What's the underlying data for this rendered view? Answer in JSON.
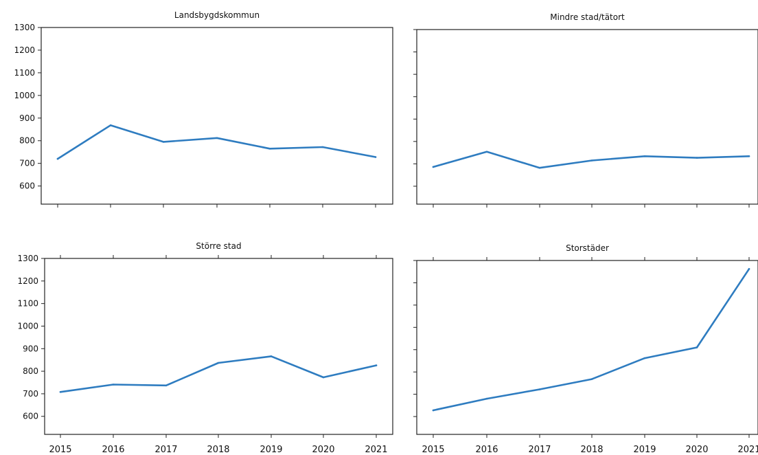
{
  "chart_data": [
    {
      "type": "line",
      "title": "Landsbygdskommun",
      "x": [
        "2015",
        "2016",
        "2017",
        "2018",
        "2019",
        "2020",
        "2021"
      ],
      "y": [
        720,
        868,
        795,
        812,
        765,
        772,
        728
      ],
      "ylim": [
        520,
        1300
      ],
      "yticks": [
        600,
        700,
        800,
        900,
        1000,
        1100,
        1200,
        1300
      ],
      "show_x_ticklabels": false,
      "show_y_ticklabels": true,
      "grid": false,
      "line_color": "#2e7cc0"
    },
    {
      "type": "line",
      "title": "Mindre stad/tätort",
      "x": [
        "2015",
        "2016",
        "2017",
        "2018",
        "2019",
        "2020",
        "2021"
      ],
      "y": [
        686,
        754,
        682,
        715,
        734,
        727,
        734
      ],
      "ylim": [
        520,
        1300
      ],
      "yticks": [
        600,
        700,
        800,
        900,
        1000,
        1100,
        1200,
        1300
      ],
      "show_x_ticklabels": false,
      "show_y_ticklabels": false,
      "grid": false,
      "line_color": "#2e7cc0"
    },
    {
      "type": "line",
      "title": "Större stad",
      "x": [
        "2015",
        "2016",
        "2017",
        "2018",
        "2019",
        "2020",
        "2021"
      ],
      "y": [
        708,
        741,
        737,
        837,
        866,
        773,
        826
      ],
      "ylim": [
        520,
        1300
      ],
      "yticks": [
        600,
        700,
        800,
        900,
        1000,
        1100,
        1200,
        1300
      ],
      "show_x_ticklabels": true,
      "show_y_ticklabels": true,
      "grid": false,
      "line_color": "#2e7cc0"
    },
    {
      "type": "line",
      "title": "Storstäder",
      "x": [
        "2015",
        "2016",
        "2017",
        "2018",
        "2019",
        "2020",
        "2021"
      ],
      "y": [
        628,
        680,
        722,
        768,
        862,
        910,
        1262
      ],
      "ylim": [
        520,
        1300
      ],
      "yticks": [
        600,
        700,
        800,
        900,
        1000,
        1100,
        1200,
        1300
      ],
      "show_x_ticklabels": true,
      "show_y_ticklabels": false,
      "grid": false,
      "line_color": "#2e7cc0"
    }
  ]
}
